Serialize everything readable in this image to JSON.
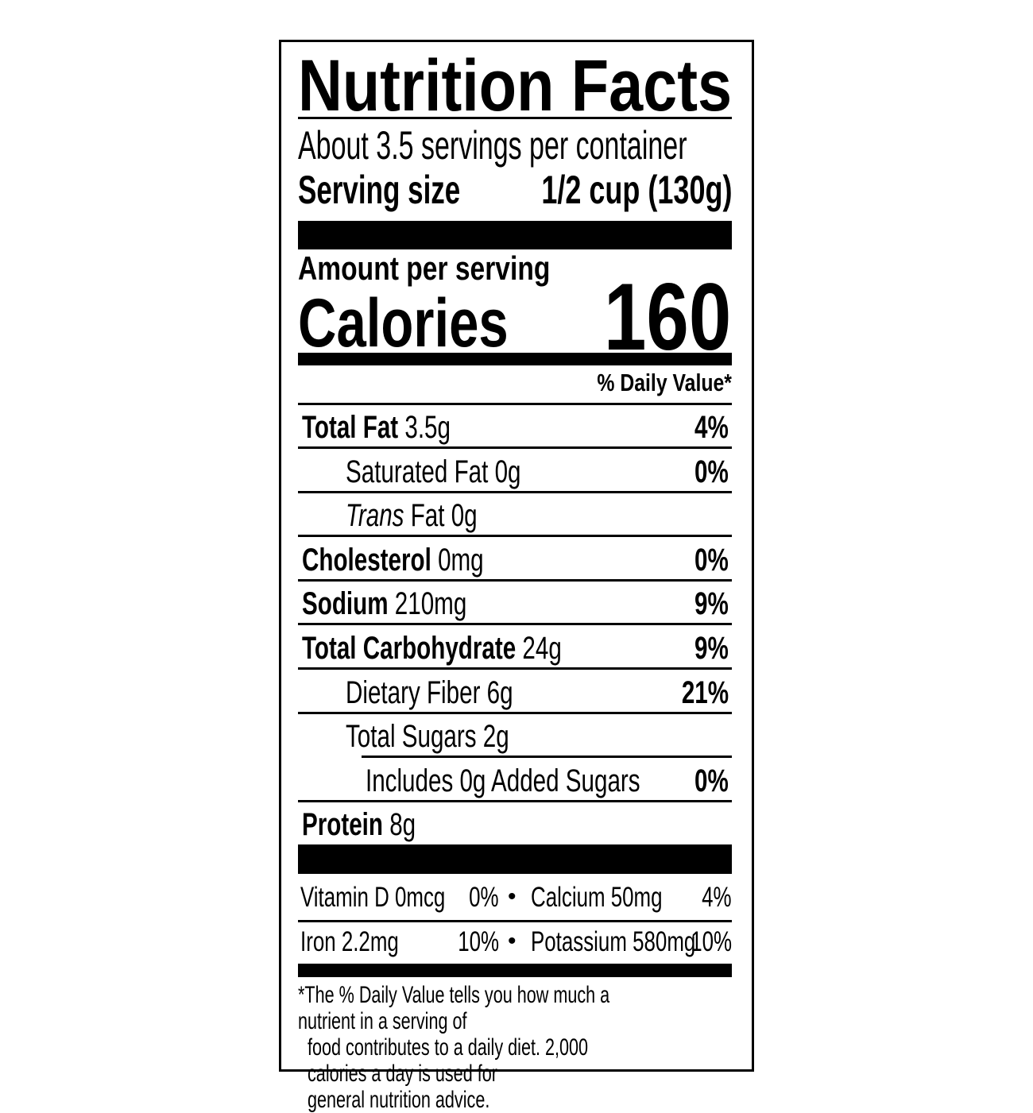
{
  "title": "Nutrition Facts",
  "servings_per_container": "About 3.5 servings per container",
  "serving_size_label": "Serving size",
  "serving_size_value": "1/2 cup (130g)",
  "amount_per_serving": "Amount per serving",
  "calories_label": "Calories",
  "calories_value": "160",
  "daily_value_header": "% Daily Value*",
  "nutrients": [
    {
      "name": "Total Fat",
      "amount": "3.5g",
      "dv": "4%",
      "bold": true
    },
    {
      "name": "Saturated Fat",
      "amount": "0g",
      "dv": "0%",
      "bold": false
    },
    {
      "name": "Trans",
      "name_suffix": "Fat",
      "amount": "0g",
      "dv": "",
      "bold": false
    },
    {
      "name": "Cholesterol",
      "amount": "0mg",
      "dv": "0%",
      "bold": true
    },
    {
      "name": "Sodium",
      "amount": "210mg",
      "dv": "9%",
      "bold": true
    },
    {
      "name": "Total Carbohydrate",
      "amount": "24g",
      "dv": "9%",
      "bold": true
    },
    {
      "name": "Dietary Fiber",
      "amount": "6g",
      "dv": "21%",
      "bold": false
    },
    {
      "name": "Total Sugars",
      "amount": "2g",
      "dv": "",
      "bold": false
    },
    {
      "name": "Includes 0g Added Sugars",
      "amount": "",
      "dv": "0%",
      "bold": false
    },
    {
      "name": "Protein",
      "amount": "8g",
      "dv": "",
      "bold": true
    }
  ],
  "vitamins": [
    [
      {
        "name": "Vitamin D 0mcg",
        "dv": "0%"
      },
      {
        "name": "Calcium 50mg",
        "dv": "4%"
      }
    ],
    [
      {
        "name": "Iron 2.2mg",
        "dv": "10%"
      },
      {
        "name": "Potassium 580mg",
        "dv": "10%"
      }
    ]
  ],
  "bullet": "•",
  "footnote": "*The % Daily Value tells you how much a nutrient in a serving of food contributes to a daily diet. 2,000 calories a day is used for general nutrition advice.",
  "footnote_lines": [
    "*The % Daily Value tells you how much a nutrient in a serving of",
    "food contributes to a daily diet. 2,000 calories a day is used for",
    "general nutrition advice."
  ]
}
